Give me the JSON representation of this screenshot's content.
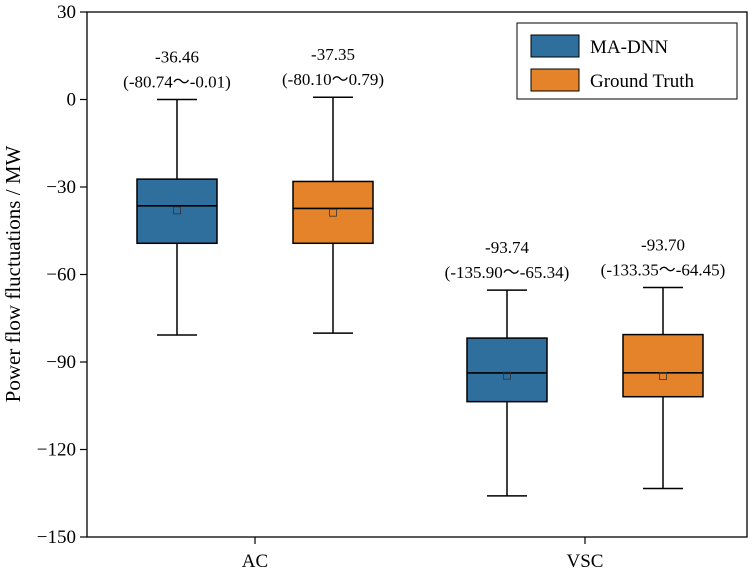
{
  "chart_data": {
    "type": "boxplot",
    "ylabel": "Power flow fluctuations / MW",
    "xlabel": "",
    "ylim": [
      -150,
      30
    ],
    "yticks": [
      30,
      0,
      -30,
      -60,
      -90,
      -120,
      -150
    ],
    "ytick_labels": [
      "30",
      "0",
      "−30",
      "−60",
      "−90",
      "−120",
      "−150"
    ],
    "categories": [
      "AC",
      "VSC"
    ],
    "legend": {
      "position": "top-right",
      "entries": [
        {
          "name": "MA-DNN",
          "color": "#2e6f9e"
        },
        {
          "name": "Ground Truth",
          "color": "#e5832a"
        }
      ]
    },
    "series": [
      {
        "name": "MA-DNN",
        "color": "#2e6f9e",
        "boxes": [
          {
            "category": "AC",
            "whisker_low": -80.74,
            "q1": -49.3,
            "median": -36.46,
            "q3": -27.3,
            "whisker_high": -0.01,
            "mean": -38.0,
            "annotation_value": "-36.46",
            "annotation_range": "(-80.74～-0.01)"
          },
          {
            "category": "VSC",
            "whisker_low": -135.9,
            "q1": -103.6,
            "median": -93.74,
            "q3": -81.8,
            "whisker_high": -65.34,
            "mean": -94.7,
            "annotation_value": "-93.74",
            "annotation_range": "(-135.90～-65.34)"
          }
        ]
      },
      {
        "name": "Ground Truth",
        "color": "#e5832a",
        "boxes": [
          {
            "category": "AC",
            "whisker_low": -80.1,
            "q1": -49.3,
            "median": -37.35,
            "q3": -28.1,
            "whisker_high": 0.79,
            "mean": -38.8,
            "annotation_value": "-37.35",
            "annotation_range": "(-80.10～0.79)"
          },
          {
            "category": "VSC",
            "whisker_low": -133.35,
            "q1": -101.9,
            "median": -93.7,
            "q3": -80.6,
            "whisker_high": -64.45,
            "mean": -94.8,
            "annotation_value": "-93.70",
            "annotation_range": "(-133.35～-64.45)"
          }
        ]
      }
    ]
  }
}
